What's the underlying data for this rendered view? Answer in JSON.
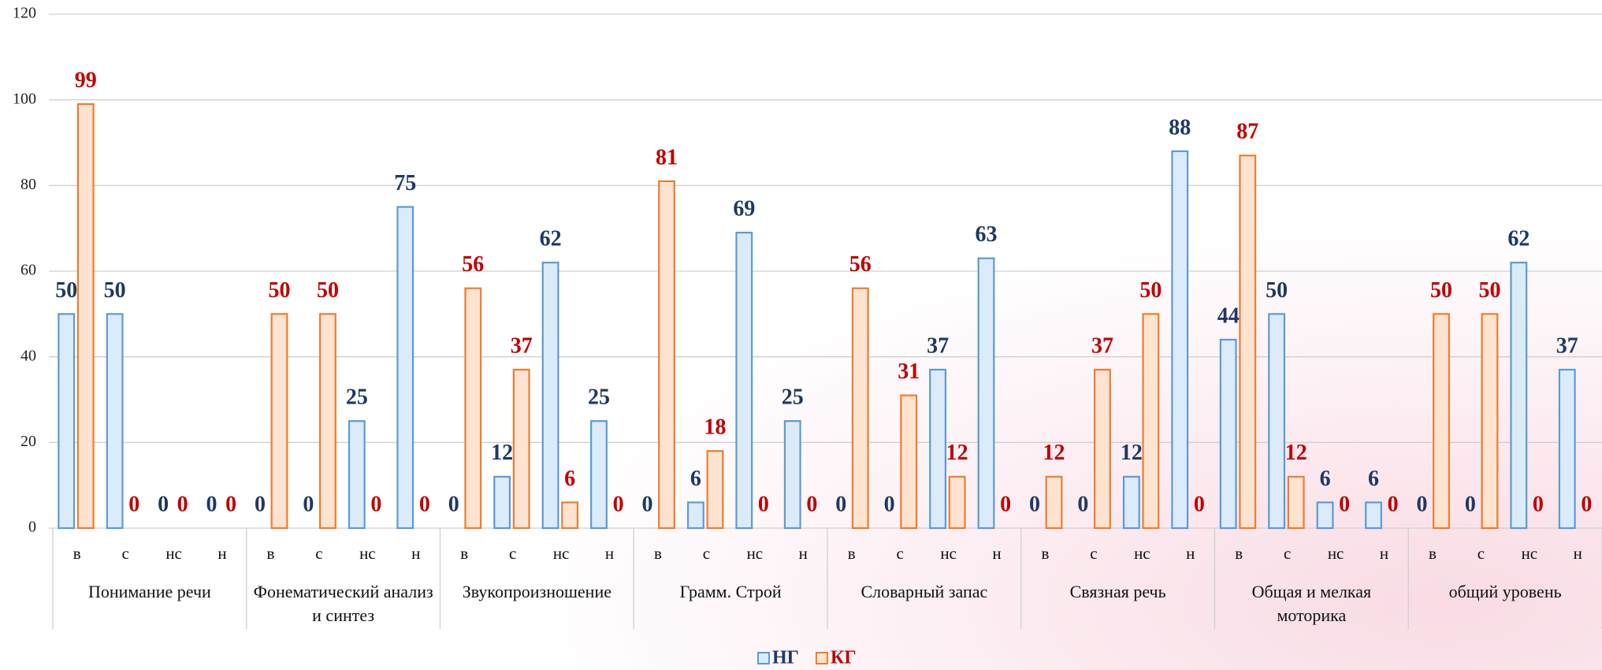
{
  "chart_data": {
    "type": "bar",
    "categories": [
      "в",
      "с",
      "нс",
      "н",
      "в",
      "с",
      "нс",
      "н",
      "в",
      "с",
      "нс",
      "н",
      "в",
      "с",
      "нс",
      "н",
      "в",
      "с",
      "нс",
      "н",
      "в",
      "с",
      "нс",
      "н",
      "в",
      "с",
      "нс",
      "н",
      "в",
      "с",
      "нс",
      "н"
    ],
    "groups": [
      "Понимание речи",
      "Фонематический анализ и синтез",
      "Звукопроизношение",
      "Грамм. Строй",
      "Словарный запас",
      "Связная речь",
      "Общая и мелкая моторика",
      "общий уровень"
    ],
    "series": [
      {
        "name": "НГ",
        "color": "#5b9bd5",
        "fill": "#dcebf9",
        "label_color": "#1f3864",
        "values": [
          50,
          50,
          0,
          0,
          0,
          0,
          25,
          75,
          0,
          12,
          62,
          25,
          0,
          6,
          69,
          25,
          0,
          0,
          37,
          63,
          0,
          0,
          12,
          88,
          44,
          50,
          6,
          6,
          0,
          0,
          62,
          37
        ]
      },
      {
        "name": "КГ",
        "color": "#ed7d31",
        "fill": "#fde3d0",
        "label_color": "#c00000",
        "values": [
          99,
          0,
          0,
          0,
          50,
          50,
          0,
          0,
          56,
          37,
          6,
          0,
          81,
          18,
          0,
          0,
          56,
          31,
          12,
          0,
          12,
          37,
          50,
          0,
          87,
          12,
          0,
          0,
          50,
          50,
          0,
          0
        ]
      }
    ],
    "ylim": [
      0,
      120
    ],
    "yticks": [
      0,
      20,
      40,
      60,
      80,
      100,
      120
    ],
    "grid": true,
    "legend": "bottom"
  }
}
